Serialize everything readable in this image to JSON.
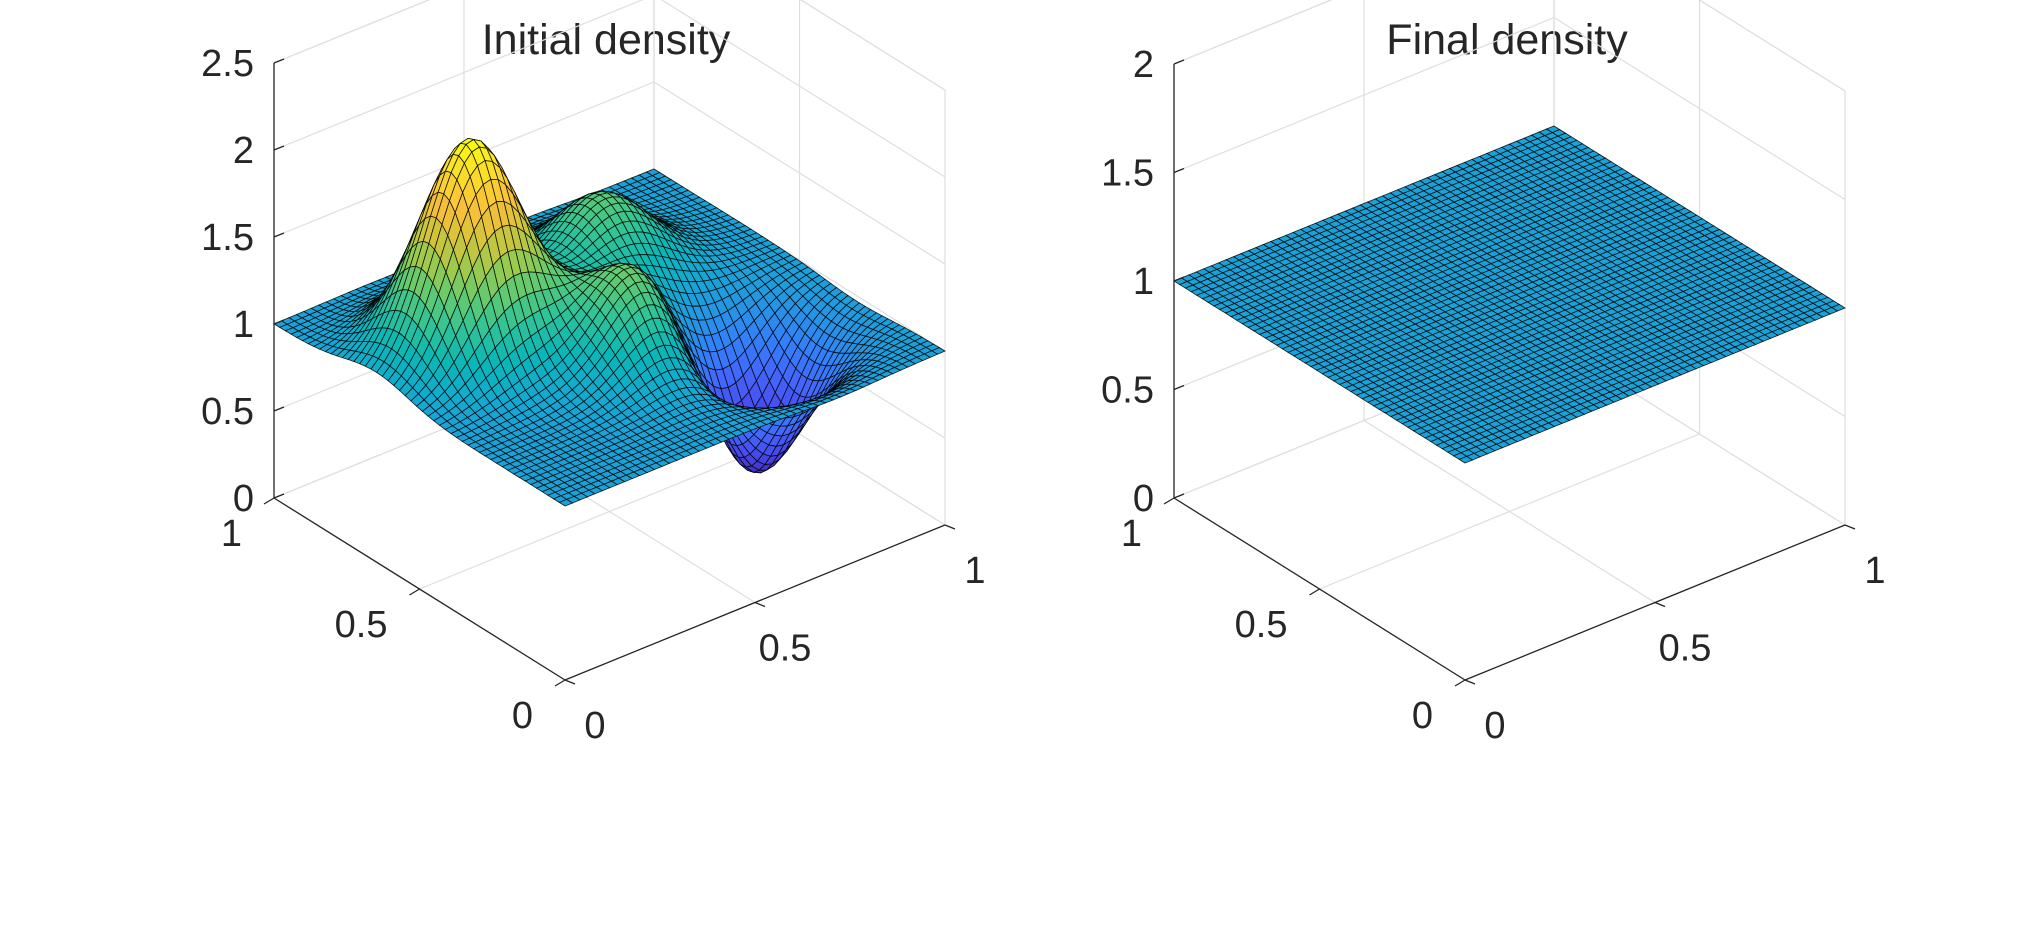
{
  "chart_data": [
    {
      "type": "surface",
      "title": "Initial density",
      "xlabel": "",
      "ylabel": "",
      "zlabel": "",
      "xlim": [
        0,
        1
      ],
      "ylim": [
        0,
        1
      ],
      "zlim": [
        0,
        2.5
      ],
      "xticks": [
        "0",
        "0.5",
        "1"
      ],
      "yticks": [
        "0",
        "0.5",
        "1"
      ],
      "zticks": [
        "0",
        "0.5",
        "1",
        "1.5",
        "2",
        "2.5"
      ],
      "xtick_values": [
        0,
        0.5,
        1
      ],
      "ytick_values": [
        0,
        0.5,
        1
      ],
      "ztick_values": [
        0,
        0.5,
        1,
        1.5,
        2,
        2.5
      ],
      "grid": true,
      "colormap": "parula",
      "clim": [
        0.2,
        2.2
      ],
      "mesh_size": 51,
      "baseline": 1.0,
      "z_max": 2.2,
      "z_min": 0.2,
      "features": [
        {
          "shape": "peak",
          "x": 0.25,
          "y": 0.65,
          "amplitude": 1.2
        },
        {
          "shape": "peak",
          "x": 0.65,
          "y": 0.72,
          "amplitude": 0.45
        },
        {
          "shape": "peak",
          "x": 0.5,
          "y": 0.4,
          "amplitude": 0.55
        },
        {
          "shape": "dip",
          "x": 0.72,
          "y": 0.3,
          "amplitude": -0.8
        }
      ]
    },
    {
      "type": "surface",
      "title": "Final density",
      "xlabel": "",
      "ylabel": "",
      "zlabel": "",
      "xlim": [
        0,
        1
      ],
      "ylim": [
        0,
        1
      ],
      "zlim": [
        0,
        2
      ],
      "xticks": [
        "0",
        "0.5",
        "1"
      ],
      "yticks": [
        "0",
        "0.5",
        "1"
      ],
      "zticks": [
        "0",
        "0.5",
        "1",
        "1.5",
        "2"
      ],
      "xtick_values": [
        0,
        0.5,
        1
      ],
      "ytick_values": [
        0,
        0.5,
        1
      ],
      "ztick_values": [
        0,
        0.5,
        1,
        1.5,
        2
      ],
      "grid": true,
      "colormap": "parula",
      "clim": [
        0.2,
        2.2
      ],
      "mesh_size": 51,
      "baseline": 1.0,
      "z_max": 1.0,
      "z_min": 1.0,
      "features": []
    }
  ]
}
